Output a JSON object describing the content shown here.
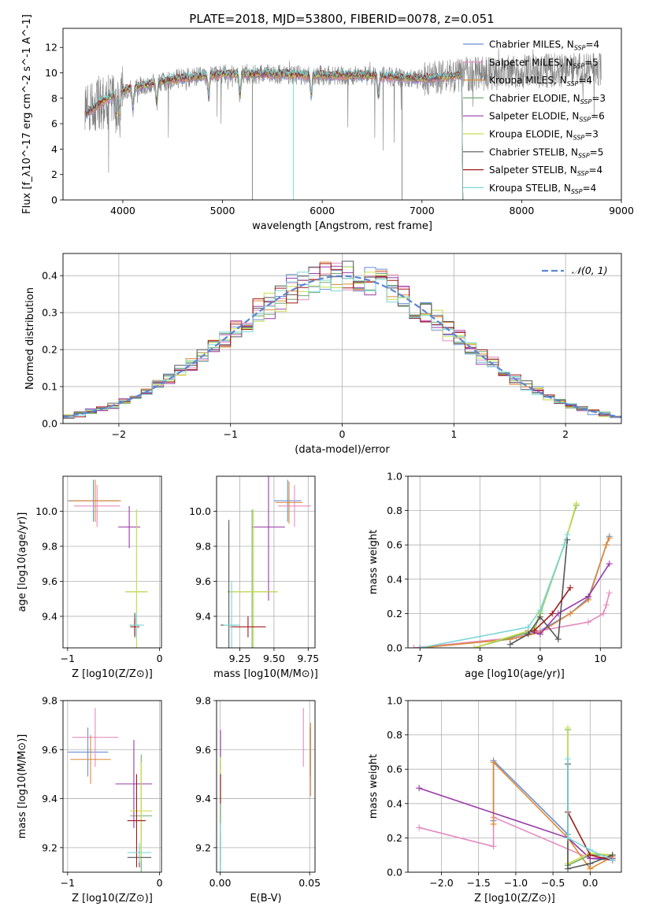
{
  "title": "PLATE=2018, MJD=53800, FIBERID=0078, z=0.051",
  "colors": {
    "chabrier_miles": "#6a8fd6",
    "salpeter_miles": "#e58cc0",
    "kroupa_miles": "#e08a33",
    "chabrier_elodie": "#6fa86f",
    "salpeter_elodie": "#9a3aa8",
    "kroupa_elodie": "#c8e04a",
    "chabrier_stelib": "#555555",
    "salpeter_stelib": "#a01818",
    "kroupa_stelib": "#7ad6d6",
    "data": "#808080",
    "normal": "#5b85d6",
    "grid": "#b0b0b0"
  },
  "chart_data": [
    {
      "id": "spectrum",
      "type": "line",
      "xlabel": "wavelength [Angstrom, rest frame]",
      "ylabel": "Flux [f_λ10^-17 erg cm^-2 s^-1 A^-1]",
      "xlim": [
        3400,
        9000
      ],
      "ylim": [
        0,
        13.5
      ],
      "xticks": [
        4000,
        5000,
        6000,
        7000,
        8000,
        9000
      ],
      "yticks": [
        0,
        2,
        4,
        6,
        8,
        10,
        12
      ],
      "legend_position": "right",
      "legend": [
        {
          "model": "Chabrier MILES",
          "nssp": "4"
        },
        {
          "model": "Salpeter MILES",
          "nssp": "5"
        },
        {
          "model": "Kroupa MILES",
          "nssp": "4"
        },
        {
          "model": "Chabrier ELODIE",
          "nssp": "3"
        },
        {
          "model": "Salpeter ELODIE",
          "nssp": "6"
        },
        {
          "model": "Kroupa ELODIE",
          "nssp": "3"
        },
        {
          "model": "Chabrier STELIB",
          "nssp": "5"
        },
        {
          "model": "Salpeter STELIB",
          "nssp": "4"
        },
        {
          "model": "Kroupa STELIB",
          "nssp": "4"
        }
      ],
      "continuum": {
        "x": [
          3620,
          3800,
          4000,
          4200,
          4500,
          5000,
          5500,
          6000,
          6500,
          7000,
          7500,
          8000,
          8500,
          8800
        ],
        "y": [
          7.5,
          8.2,
          8.6,
          9.0,
          9.5,
          9.9,
          9.9,
          9.8,
          9.8,
          9.5,
          9.9,
          10.1,
          10.2,
          10.2
        ]
      },
      "data_xrange": [
        3620,
        8800
      ],
      "model_xrange": [
        3620,
        7400
      ]
    },
    {
      "id": "residuals",
      "type": "line",
      "xlabel": "(data-model)/error",
      "ylabel": "Normed distribution",
      "xlim": [
        -2.5,
        2.5
      ],
      "ylim": [
        0,
        0.46
      ],
      "xticks": [
        -2,
        -1,
        0,
        1,
        2
      ],
      "yticks": [
        0.0,
        0.1,
        0.2,
        0.3,
        0.4
      ],
      "legend_position": "top-right",
      "series": [
        {
          "name": "N(0,1)",
          "legend_label": "𝒩(0, 1)",
          "style": "dashed"
        }
      ]
    },
    {
      "id": "age_vs_Z",
      "type": "scatter",
      "xlabel": "Z [log10(Z/Z⊙)]",
      "ylabel": "age [log10(age/yr)]",
      "xlim": [
        -1.05,
        0.02
      ],
      "ylim": [
        9.22,
        10.2
      ],
      "xticks": [
        -1,
        0
      ],
      "yticks": [
        9.4,
        9.6,
        9.8,
        10.0
      ],
      "points": [
        {
          "m": "chabrier_miles",
          "x": -0.72,
          "y": 10.06,
          "xerr": 0.28,
          "yerr": 0.12
        },
        {
          "m": "salpeter_miles",
          "x": -0.68,
          "y": 10.03,
          "xerr": 0.25,
          "yerr": 0.12
        },
        {
          "m": "kroupa_miles",
          "x": -0.7,
          "y": 10.06,
          "xerr": 0.28,
          "yerr": 0.12
        },
        {
          "m": "chabrier_elodie",
          "x": -0.25,
          "y": 9.54,
          "xerr": 0.12,
          "yerr": 0.47
        },
        {
          "m": "salpeter_elodie",
          "x": -0.33,
          "y": 9.91,
          "xerr": 0.12,
          "yerr": 0.12
        },
        {
          "m": "kroupa_elodie",
          "x": -0.25,
          "y": 9.54,
          "xerr": 0.12,
          "yerr": 0.47
        },
        {
          "m": "chabrier_stelib",
          "x": -0.27,
          "y": 9.35,
          "xerr": 0.05,
          "yerr": 0.07
        },
        {
          "m": "salpeter_stelib",
          "x": -0.27,
          "y": 9.34,
          "xerr": 0.05,
          "yerr": 0.05
        },
        {
          "m": "kroupa_stelib",
          "x": -0.25,
          "y": 9.35,
          "xerr": 0.08,
          "yerr": 0.07
        }
      ]
    },
    {
      "id": "age_vs_mass",
      "type": "scatter",
      "xlabel": "mass [log10(M/M⊙)]",
      "ylabel": "",
      "xlim": [
        9.08,
        9.8
      ],
      "ylim": [
        9.22,
        10.2
      ],
      "xticks": [
        9.25,
        9.5,
        9.75
      ],
      "yticks": [
        9.4,
        9.6,
        9.8,
        10.0
      ],
      "points": [
        {
          "m": "chabrier_miles",
          "x": 9.6,
          "y": 10.06,
          "xerr": 0.1,
          "yerr": 0.12
        },
        {
          "m": "salpeter_miles",
          "x": 9.65,
          "y": 10.03,
          "xerr": 0.12,
          "yerr": 0.12
        },
        {
          "m": "kroupa_miles",
          "x": 9.61,
          "y": 10.05,
          "xerr": 0.1,
          "yerr": 0.12
        },
        {
          "m": "chabrier_elodie",
          "x": 9.34,
          "y": 9.54,
          "xerr": 0.18,
          "yerr": 0.47
        },
        {
          "m": "salpeter_elodie",
          "x": 9.46,
          "y": 9.91,
          "xerr": 0.12,
          "yerr": 0.42
        },
        {
          "m": "kroupa_elodie",
          "x": 9.35,
          "y": 9.54,
          "xerr": 0.18,
          "yerr": 0.47
        },
        {
          "m": "chabrier_stelib",
          "x": 9.17,
          "y": 9.35,
          "xerr": 0.06,
          "yerr": 0.6
        },
        {
          "m": "salpeter_stelib",
          "x": 9.31,
          "y": 9.34,
          "xerr": 0.13,
          "yerr": 0.06
        },
        {
          "m": "kroupa_stelib",
          "x": 9.19,
          "y": 9.35,
          "xerr": 0.06,
          "yerr": 0.25
        }
      ]
    },
    {
      "id": "weight_vs_age",
      "type": "line",
      "xlabel": "age [log10(age/yr)]",
      "ylabel": "mass weight",
      "xlim": [
        6.8,
        10.35
      ],
      "ylim": [
        0,
        1.0
      ],
      "xticks": [
        7,
        8,
        9,
        10
      ],
      "yticks": [
        0.0,
        0.2,
        0.4,
        0.6,
        0.8,
        1.0
      ],
      "series": [
        {
          "m": "chabrier_miles",
          "x": [
            7.0,
            8.5,
            9.0,
            9.5,
            9.8,
            10.1,
            10.15
          ],
          "y": [
            0.0,
            0.05,
            0.1,
            0.2,
            0.29,
            0.6,
            0.65
          ]
        },
        {
          "m": "salpeter_miles",
          "x": [
            6.9,
            8.6,
            9.0,
            9.8,
            10.05,
            10.1,
            10.15
          ],
          "y": [
            0.0,
            0.06,
            0.1,
            0.15,
            0.2,
            0.25,
            0.32
          ]
        },
        {
          "m": "kroupa_miles",
          "x": [
            7.0,
            8.5,
            9.0,
            9.5,
            9.8,
            10.1,
            10.15
          ],
          "y": [
            0.0,
            0.05,
            0.09,
            0.2,
            0.28,
            0.6,
            0.64
          ]
        },
        {
          "m": "chabrier_elodie",
          "x": [
            7.9,
            8.9,
            9.0,
            9.4,
            9.6
          ],
          "y": [
            0.0,
            0.1,
            0.2,
            0.6,
            0.83
          ]
        },
        {
          "m": "salpeter_elodie",
          "x": [
            8.8,
            9.0,
            9.3,
            9.8,
            10.15
          ],
          "y": [
            0.1,
            0.08,
            0.2,
            0.3,
            0.49
          ]
        },
        {
          "m": "kroupa_elodie",
          "x": [
            7.9,
            8.9,
            9.0,
            9.4,
            9.6
          ],
          "y": [
            0.0,
            0.11,
            0.21,
            0.6,
            0.84
          ]
        },
        {
          "m": "chabrier_stelib",
          "x": [
            8.5,
            8.8,
            9.0,
            9.3,
            9.45
          ],
          "y": [
            0.02,
            0.08,
            0.18,
            0.05,
            0.63
          ]
        },
        {
          "m": "salpeter_stelib",
          "x": [
            8.9,
            9.2,
            9.5
          ],
          "y": [
            0.1,
            0.2,
            0.35
          ]
        },
        {
          "m": "kroupa_stelib",
          "x": [
            7.0,
            8.8,
            9.0,
            9.4,
            9.45
          ],
          "y": [
            0.0,
            0.12,
            0.22,
            0.6,
            0.66
          ]
        }
      ]
    },
    {
      "id": "mass_vs_Z",
      "type": "scatter",
      "xlabel": "Z [log10(Z/Z⊙)]",
      "ylabel": "mass [log10(M/M⊙)]",
      "xlim": [
        -1.05,
        0.02
      ],
      "ylim": [
        9.1,
        9.8
      ],
      "xticks": [
        -1,
        0
      ],
      "yticks": [
        9.2,
        9.4,
        9.6,
        9.8
      ],
      "points": [
        {
          "m": "chabrier_miles",
          "x": -0.78,
          "y": 9.59,
          "xerr": 0.22,
          "yerr": 0.1
        },
        {
          "m": "salpeter_miles",
          "x": -0.7,
          "y": 9.65,
          "xerr": 0.25,
          "yerr": 0.12
        },
        {
          "m": "kroupa_miles",
          "x": -0.75,
          "y": 9.56,
          "xerr": 0.22,
          "yerr": 0.1
        },
        {
          "m": "chabrier_elodie",
          "x": -0.2,
          "y": 9.33,
          "xerr": 0.12,
          "yerr": 0.25
        },
        {
          "m": "salpeter_elodie",
          "x": -0.28,
          "y": 9.46,
          "xerr": 0.2,
          "yerr": 0.18
        },
        {
          "m": "kroupa_elodie",
          "x": -0.2,
          "y": 9.35,
          "xerr": 0.12,
          "yerr": 0.2
        },
        {
          "m": "chabrier_stelib",
          "x": -0.22,
          "y": 9.16,
          "xerr": 0.13,
          "yerr": 0.04
        },
        {
          "m": "salpeter_stelib",
          "x": -0.25,
          "y": 9.31,
          "xerr": 0.1,
          "yerr": 0.19
        },
        {
          "m": "kroupa_stelib",
          "x": -0.22,
          "y": 9.18,
          "xerr": 0.13,
          "yerr": 0.04
        }
      ]
    },
    {
      "id": "mass_vs_ebv",
      "type": "scatter",
      "xlabel": "E(B-V)",
      "ylabel": "",
      "xlim": [
        -0.002,
        0.053
      ],
      "ylim": [
        9.1,
        9.8
      ],
      "xticks": [
        0.0,
        0.05
      ],
      "yticks": [
        9.2,
        9.4,
        9.6,
        9.8
      ],
      "points": [
        {
          "m": "chabrier_miles",
          "x": 0.0505,
          "y": 9.59,
          "xerr": 0,
          "yerr": 0.1
        },
        {
          "m": "salpeter_miles",
          "x": 0.0465,
          "y": 9.65,
          "xerr": 0,
          "yerr": 0.12
        },
        {
          "m": "kroupa_miles",
          "x": 0.0505,
          "y": 9.56,
          "xerr": 0,
          "yerr": 0.15
        },
        {
          "m": "chabrier_elodie",
          "x": 0.0002,
          "y": 9.33,
          "xerr": 0,
          "yerr": 0.22
        },
        {
          "m": "salpeter_elodie",
          "x": 0.0002,
          "y": 9.6,
          "xerr": 0,
          "yerr": 0.08
        },
        {
          "m": "kroupa_elodie",
          "x": 0.0002,
          "y": 9.53,
          "xerr": 0,
          "yerr": 0.04
        },
        {
          "m": "chabrier_stelib",
          "x": 0.0002,
          "y": 9.2,
          "xerr": 0,
          "yerr": 0.06
        },
        {
          "m": "salpeter_stelib",
          "x": 0.0002,
          "y": 9.44,
          "xerr": 0,
          "yerr": 0.06
        },
        {
          "m": "kroupa_stelib",
          "x": 0.0002,
          "y": 9.2,
          "xerr": 0,
          "yerr": 0.1
        }
      ]
    },
    {
      "id": "weight_vs_Z",
      "type": "line",
      "xlabel": "Z [log10(Z/Z⊙)]",
      "ylabel": "mass weight",
      "xlim": [
        -2.45,
        0.42
      ],
      "ylim": [
        0,
        1.0
      ],
      "xticks": [
        -2.0,
        -1.5,
        -1.0,
        -0.5,
        0.0
      ],
      "yticks": [
        0.0,
        0.2,
        0.4,
        0.6,
        0.8,
        1.0
      ],
      "series": [
        {
          "m": "chabrier_miles",
          "x": [
            -1.3,
            -1.3,
            -0.3,
            -0.3,
            0.0,
            0.3
          ],
          "y": [
            0.3,
            0.65,
            0.22,
            0.2,
            0.08,
            0.07
          ]
        },
        {
          "m": "salpeter_miles",
          "x": [
            -2.3,
            -1.3,
            -1.3,
            0.0,
            0.3
          ],
          "y": [
            0.26,
            0.15,
            0.32,
            0.08,
            0.09
          ]
        },
        {
          "m": "kroupa_miles",
          "x": [
            -1.3,
            -1.3,
            -0.3,
            0.0,
            0.3
          ],
          "y": [
            0.28,
            0.64,
            0.2,
            0.02,
            0.09
          ]
        },
        {
          "m": "chabrier_elodie",
          "x": [
            -0.3,
            -0.3,
            0.0,
            0.3
          ],
          "y": [
            0.83,
            0.04,
            0.1,
            0.1
          ]
        },
        {
          "m": "salpeter_elodie",
          "x": [
            -2.3,
            -0.3,
            0.0,
            0.3
          ],
          "y": [
            0.49,
            0.2,
            0.08,
            0.08
          ]
        },
        {
          "m": "kroupa_elodie",
          "x": [
            -0.3,
            -0.3,
            0.0,
            0.3
          ],
          "y": [
            0.84,
            0.05,
            0.11,
            0.1
          ]
        },
        {
          "m": "chabrier_stelib",
          "x": [
            -0.3,
            -0.3,
            0.0,
            0.3
          ],
          "y": [
            0.63,
            0.02,
            0.05,
            0.1
          ]
        },
        {
          "m": "salpeter_stelib",
          "x": [
            -0.3,
            0.0,
            0.3
          ],
          "y": [
            0.35,
            0.1,
            0.07
          ]
        },
        {
          "m": "kroupa_stelib",
          "x": [
            -0.3,
            -0.3,
            0.0,
            0.3
          ],
          "y": [
            0.66,
            0.2,
            0.13,
            0.07
          ]
        }
      ]
    }
  ]
}
